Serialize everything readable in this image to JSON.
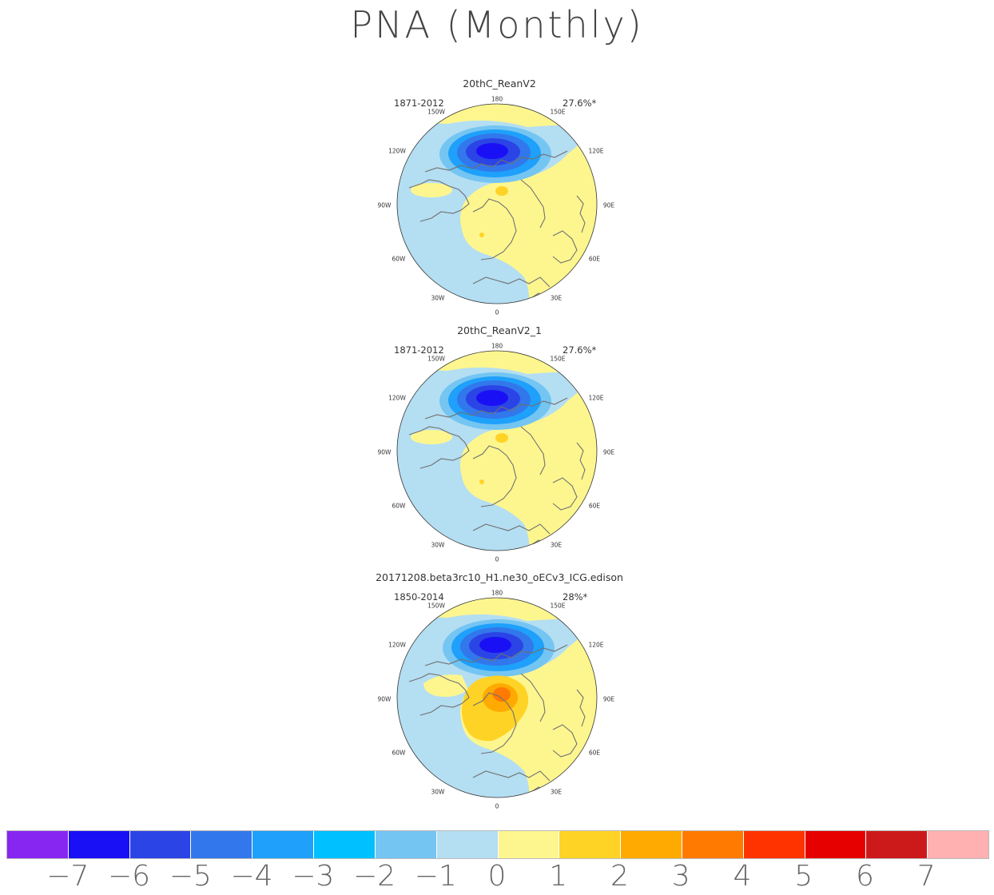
{
  "title": "PNA (Monthly)",
  "panels": [
    {
      "name": "20thC_ReanV2",
      "period": "1871-2012",
      "variance": "27.6%*",
      "pattern": "obs"
    },
    {
      "name": "20thC_ReanV2_1",
      "period": "1871-2012",
      "variance": "27.6%*",
      "pattern": "obs"
    },
    {
      "name": "20171208.beta3rc10_H1.ne30_oECv3_ICG.edison",
      "period": "1850-2014",
      "variance": "28%*",
      "pattern": "model"
    }
  ],
  "longitude_labels": {
    "lon180": "180",
    "lon150W": "150W",
    "lon150E": "150E",
    "lon120W": "120W",
    "lon120E": "120E",
    "lon90W": "90W",
    "lon90E": "90E",
    "lon60W": "60W",
    "lon60E": "60E",
    "lon30W": "30W",
    "lon30E": "30E",
    "lon0": "0"
  },
  "colors": {
    "neg1": "#b4def2",
    "pos1": "#fdf68f",
    "land_outline": "#707070",
    "blue_levels": [
      "#74c5f2",
      "#1ea0fb",
      "#3277eb",
      "#2b44e6",
      "#1a10f5"
    ],
    "orange_levels": [
      "#ffd326",
      "#ffaa00",
      "#ff7a00"
    ]
  },
  "colorbar": {
    "colors": [
      "#8725f1",
      "#1a10f5",
      "#2b44e6",
      "#3277eb",
      "#1ea0fb",
      "#00c0ff",
      "#74c5f2",
      "#b4def2",
      "#fdf68f",
      "#ffd326",
      "#ffaa00",
      "#ff7a00",
      "#ff3300",
      "#e60000",
      "#cc1a1a",
      "#ffb0b0"
    ],
    "labels": [
      "-7",
      "-6",
      "-5",
      "-4",
      "-3",
      "-2",
      "-1",
      "0",
      "1",
      "2",
      "3",
      "4",
      "5",
      "6",
      "7"
    ]
  }
}
